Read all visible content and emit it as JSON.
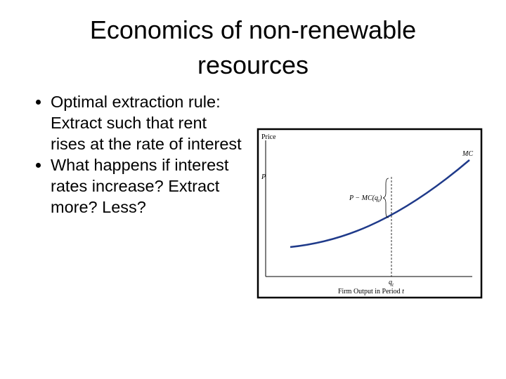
{
  "title": "Economics of non-renewable resources",
  "bullets": [
    "Optimal extraction rule: Extract such that rent rises at the rate of interest",
    "What happens if interest rates increase? Extract more? Less?"
  ],
  "figure": {
    "y_axis_label": "Price",
    "price_label": "P",
    "curve_label": "MC",
    "rent_label": [
      "P − MC(q",
      "t",
      ")"
    ],
    "quantity_label": [
      "q",
      "t"
    ],
    "x_axis_label": [
      "Firm Output in Period ",
      "t"
    ]
  }
}
